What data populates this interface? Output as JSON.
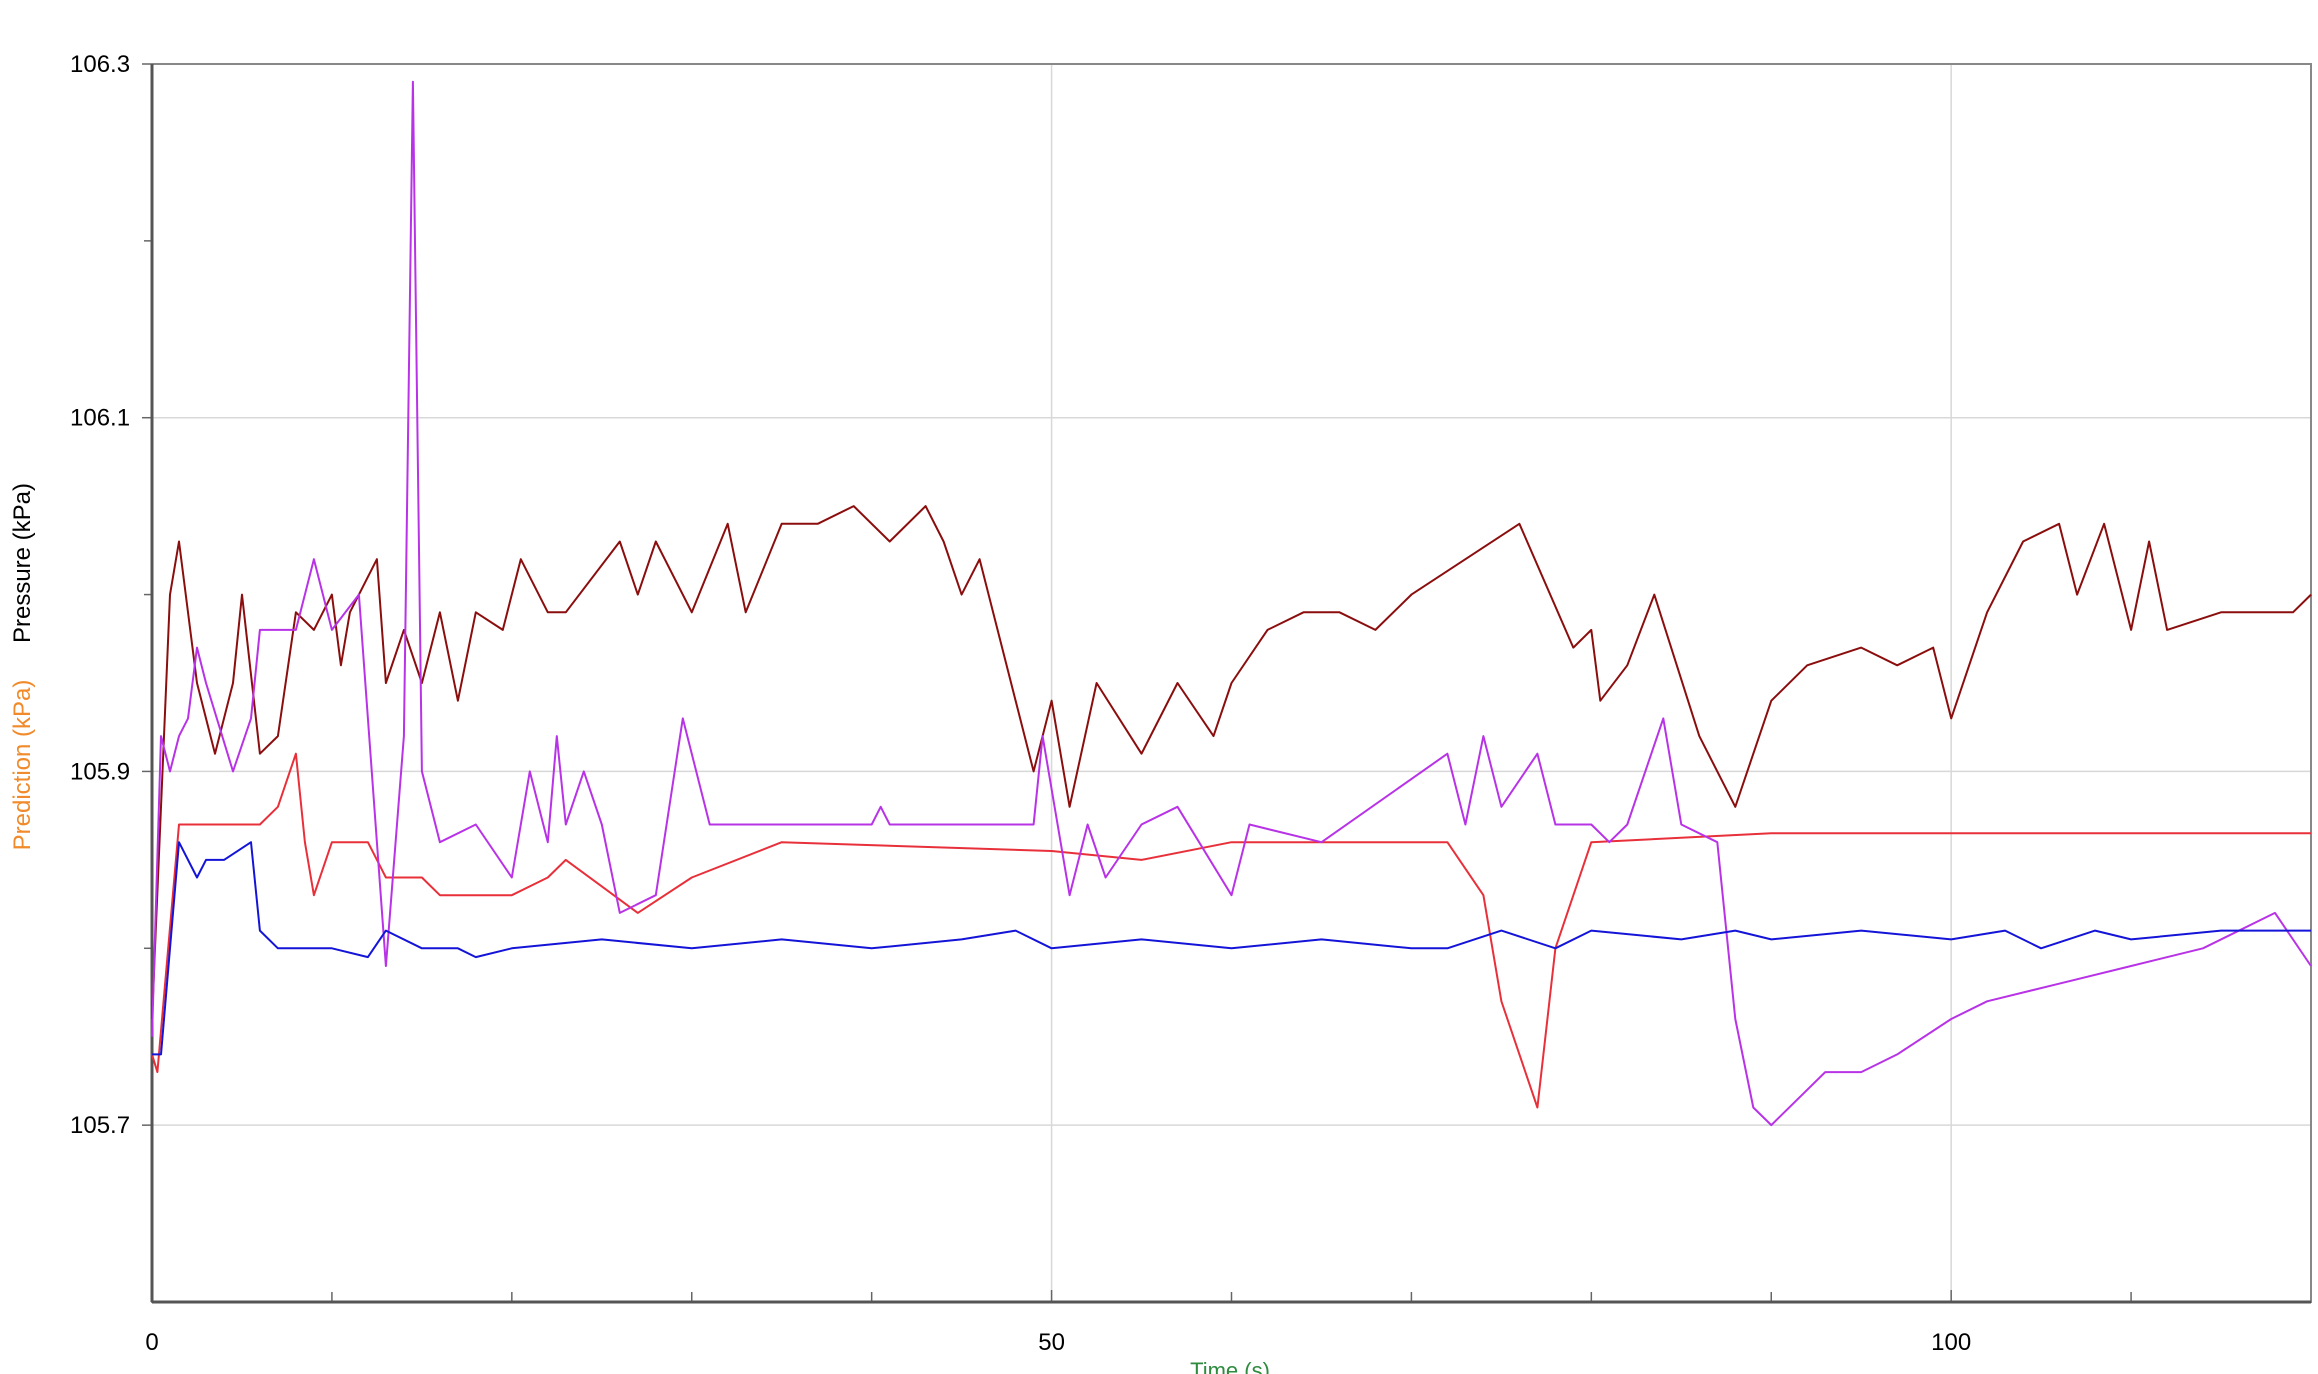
{
  "chart_data": {
    "type": "line",
    "ylabel": "Pressure (kPa)",
    "y2label": "Prediction (kPa)",
    "xlabel": "Time (s)",
    "xlim": [
      0,
      120
    ],
    "ylim": [
      105.6,
      106.3
    ],
    "xticks": [
      0,
      50,
      100
    ],
    "yticks": [
      105.7,
      105.9,
      106.1,
      106.3
    ],
    "xminorticks": [
      10,
      20,
      30,
      40,
      60,
      70,
      80,
      90,
      110,
      120
    ],
    "yminorticks": [
      105.8,
      106.0,
      106.2
    ],
    "grid": true,
    "series": [
      {
        "color": "#8b0e0e",
        "x": [
          0,
          1,
          1.5,
          2.5,
          3.5,
          4.5,
          5,
          6,
          7,
          8,
          9,
          10,
          10.5,
          11,
          12.5,
          13,
          14,
          15,
          16,
          17,
          18,
          19.5,
          20.5,
          22,
          23,
          26,
          27,
          28,
          30,
          32,
          33,
          35,
          37,
          39,
          41,
          43,
          44,
          45,
          46,
          49,
          50,
          51,
          52.5,
          55,
          57,
          59,
          60,
          62,
          64,
          66,
          68,
          70,
          76,
          79,
          80,
          80.5,
          82,
          83.5,
          86,
          88,
          90,
          92,
          95,
          97,
          99,
          100,
          102,
          104,
          106,
          107,
          108.5,
          110,
          111,
          112,
          115,
          118,
          119,
          120
        ],
        "values": [
          105.76,
          106.0,
          106.03,
          105.95,
          105.91,
          105.95,
          106.0,
          105.91,
          105.92,
          105.99,
          105.98,
          106.0,
          105.96,
          105.99,
          106.02,
          105.95,
          105.98,
          105.95,
          105.99,
          105.94,
          105.99,
          105.98,
          106.02,
          105.99,
          105.99,
          106.03,
          106.0,
          106.03,
          105.99,
          106.04,
          105.99,
          106.04,
          106.04,
          106.05,
          106.03,
          106.05,
          106.03,
          106.0,
          106.02,
          105.9,
          105.94,
          105.88,
          105.95,
          105.91,
          105.95,
          105.92,
          105.95,
          105.98,
          105.99,
          105.99,
          105.98,
          106.0,
          106.04,
          105.97,
          105.98,
          105.94,
          105.96,
          106.0,
          105.92,
          105.88,
          105.94,
          105.96,
          105.97,
          105.96,
          105.97,
          105.93,
          105.99,
          106.03,
          106.04,
          106.0,
          106.04,
          105.98,
          106.03,
          105.98,
          105.99,
          105.99,
          105.99,
          106.0
        ]
      },
      {
        "color": "#e8303a",
        "x": [
          0,
          0.3,
          1.5,
          6,
          7,
          8,
          8.5,
          9,
          10,
          12,
          13,
          15,
          16,
          20,
          22,
          23,
          27,
          30,
          35,
          50,
          55,
          60,
          72,
          74,
          75,
          77,
          78,
          80,
          90,
          100,
          110,
          120
        ],
        "values": [
          105.74,
          105.73,
          105.87,
          105.87,
          105.88,
          105.91,
          105.86,
          105.83,
          105.86,
          105.86,
          105.84,
          105.84,
          105.83,
          105.83,
          105.84,
          105.85,
          105.82,
          105.84,
          105.86,
          105.855,
          105.85,
          105.86,
          105.86,
          105.83,
          105.77,
          105.71,
          105.8,
          105.86,
          105.865,
          105.865,
          105.865,
          105.865
        ]
      },
      {
        "color": "#b833e6",
        "x": [
          0,
          0.5,
          1,
          1.5,
          2,
          2.5,
          3,
          4.5,
          5.5,
          6,
          8,
          9,
          10,
          11.5,
          13,
          14,
          14.5,
          15,
          16,
          18,
          20,
          21,
          22,
          22.5,
          23,
          24,
          25,
          26,
          28,
          29.5,
          31,
          40,
          40.5,
          41,
          49,
          49.5,
          51,
          52,
          53,
          55,
          57,
          60,
          61,
          65,
          72,
          73,
          74,
          75,
          77,
          78,
          80,
          81,
          82,
          84,
          85,
          87,
          88,
          89,
          90,
          92,
          93,
          95,
          97,
          100,
          102,
          106,
          110,
          114,
          118,
          120
        ],
        "values": [
          105.75,
          105.92,
          105.9,
          105.92,
          105.93,
          105.97,
          105.95,
          105.9,
          105.93,
          105.98,
          105.98,
          106.02,
          105.98,
          106.0,
          105.79,
          105.92,
          106.29,
          105.9,
          105.86,
          105.87,
          105.84,
          105.9,
          105.86,
          105.92,
          105.87,
          105.9,
          105.87,
          105.82,
          105.83,
          105.93,
          105.87,
          105.87,
          105.88,
          105.87,
          105.87,
          105.92,
          105.83,
          105.87,
          105.84,
          105.87,
          105.88,
          105.83,
          105.87,
          105.86,
          105.91,
          105.87,
          105.92,
          105.88,
          105.91,
          105.87,
          105.87,
          105.86,
          105.87,
          105.93,
          105.87,
          105.86,
          105.76,
          105.71,
          105.7,
          105.72,
          105.73,
          105.73,
          105.74,
          105.76,
          105.77,
          105.78,
          105.79,
          105.8,
          105.82,
          105.79
        ]
      },
      {
        "color": "#1414d8",
        "x": [
          0,
          0.5,
          1.5,
          2.5,
          3,
          4,
          5.5,
          6,
          7,
          8,
          10,
          12,
          13,
          15,
          17,
          18,
          20,
          25,
          30,
          35,
          40,
          45,
          48,
          50,
          55,
          60,
          65,
          70,
          72,
          75,
          78,
          80,
          85,
          88,
          90,
          95,
          100,
          103,
          105,
          108,
          110,
          115,
          120
        ],
        "values": [
          105.74,
          105.74,
          105.86,
          105.84,
          105.85,
          105.85,
          105.86,
          105.81,
          105.8,
          105.8,
          105.8,
          105.795,
          105.81,
          105.8,
          105.8,
          105.795,
          105.8,
          105.805,
          105.8,
          105.805,
          105.8,
          105.805,
          105.81,
          105.8,
          105.805,
          105.8,
          105.805,
          105.8,
          105.8,
          105.81,
          105.8,
          105.81,
          105.805,
          105.81,
          105.805,
          105.81,
          105.805,
          105.81,
          105.8,
          105.81,
          105.805,
          105.81,
          105.81
        ]
      }
    ]
  }
}
